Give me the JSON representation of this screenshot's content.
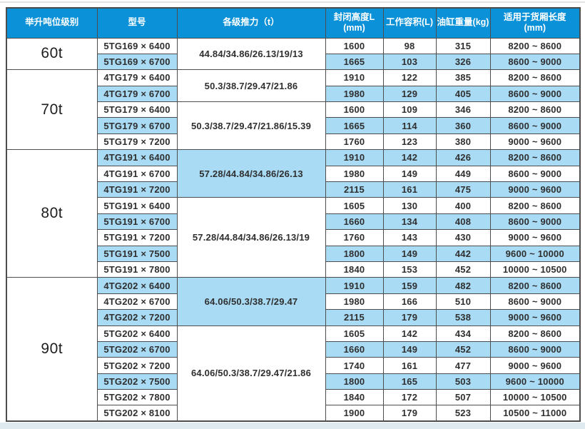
{
  "colors": {
    "header_bg": "#0a91d7",
    "header_text": "#ffffff",
    "shaded_row_bg": "#a9dbf5",
    "border": "#4d4d4d",
    "cell_text": "#2f2f2f",
    "bottom_strip": "#dfe9f0"
  },
  "table": {
    "headers": [
      {
        "label": "举升吨位级别",
        "sub": ""
      },
      {
        "label": "型号",
        "sub": ""
      },
      {
        "label": "各级推力（t）",
        "sub": ""
      },
      {
        "label": "封闭高度L",
        "sub": "(mm)"
      },
      {
        "label": "工作容积(L)",
        "sub": ""
      },
      {
        "label": "油缸重量(kg)",
        "sub": ""
      },
      {
        "label": "适用于货厢长度",
        "sub": "(mm)"
      }
    ],
    "sections": [
      {
        "tonnage": "60t",
        "groups": [
          {
            "thrust": "44.84/34.86/26.13/19/13",
            "thrust_shaded": false,
            "rows": [
              {
                "model": "5TG169 × 6400",
                "closed_height": "1600",
                "working_volume": "98",
                "cylinder_weight": "315",
                "box_length": "8200 ~ 8600",
                "shaded": false
              },
              {
                "model": "5TG169 × 6700",
                "closed_height": "1665",
                "working_volume": "103",
                "cylinder_weight": "326",
                "box_length": "8600 ~ 9000",
                "shaded": true
              }
            ]
          }
        ]
      },
      {
        "tonnage": "70t",
        "groups": [
          {
            "thrust": "50.3/38.7/29.47/21.86",
            "thrust_shaded": false,
            "rows": [
              {
                "model": "4TG179 × 6400",
                "closed_height": "1910",
                "working_volume": "122",
                "cylinder_weight": "385",
                "box_length": "8200 ~ 8600",
                "shaded": false
              },
              {
                "model": "4TG179 × 6700",
                "closed_height": "1980",
                "working_volume": "129",
                "cylinder_weight": "405",
                "box_length": "8600 ~ 9000",
                "shaded": true
              }
            ]
          },
          {
            "thrust": "50.3/38.7/29.47/21.86/15.39",
            "thrust_shaded": false,
            "rows": [
              {
                "model": "5TG179 × 6400",
                "closed_height": "1600",
                "working_volume": "109",
                "cylinder_weight": "346",
                "box_length": "8200 ~ 8600",
                "shaded": false
              },
              {
                "model": "5TG179 × 6700",
                "closed_height": "1665",
                "working_volume": "114",
                "cylinder_weight": "360",
                "box_length": "8600 ~ 9000",
                "shaded": true
              },
              {
                "model": "5TG179 × 7200",
                "closed_height": "1760",
                "working_volume": "123",
                "cylinder_weight": "380",
                "box_length": "9000 ~ 9600",
                "shaded": false
              }
            ]
          }
        ]
      },
      {
        "tonnage": "80t",
        "groups": [
          {
            "thrust": "57.28/44.84/34.86/26.13",
            "thrust_shaded": true,
            "rows": [
              {
                "model": "4TG191 × 6400",
                "closed_height": "1910",
                "working_volume": "142",
                "cylinder_weight": "426",
                "box_length": "8200 ~ 8600",
                "shaded": true
              },
              {
                "model": "4TG191 × 6700",
                "closed_height": "1980",
                "working_volume": "149",
                "cylinder_weight": "449",
                "box_length": "8600 ~ 9000",
                "shaded": false
              },
              {
                "model": "4TG191 × 7200",
                "closed_height": "2115",
                "working_volume": "161",
                "cylinder_weight": "475",
                "box_length": "9000 ~ 9600",
                "shaded": true
              }
            ]
          },
          {
            "thrust": "57.28/44.84/34.86/26.13/19",
            "thrust_shaded": false,
            "rows": [
              {
                "model": "5TG191 × 6400",
                "closed_height": "1605",
                "working_volume": "130",
                "cylinder_weight": "400",
                "box_length": "8200 ~ 8600",
                "shaded": false
              },
              {
                "model": "5TG191 × 6700",
                "closed_height": "1660",
                "working_volume": "134",
                "cylinder_weight": "408",
                "box_length": "8600 ~ 9000",
                "shaded": true
              },
              {
                "model": "5TG191 × 7200",
                "closed_height": "1760",
                "working_volume": "143",
                "cylinder_weight": "430",
                "box_length": "9000 ~ 9600",
                "shaded": false
              },
              {
                "model": "5TG191 × 7500",
                "closed_height": "1800",
                "working_volume": "149",
                "cylinder_weight": "442",
                "box_length": "9600 ~ 10000",
                "shaded": true
              },
              {
                "model": "5TG191 × 7800",
                "closed_height": "1840",
                "working_volume": "153",
                "cylinder_weight": "452",
                "box_length": "10000 ~ 10500",
                "shaded": false
              }
            ]
          }
        ]
      },
      {
        "tonnage": "90t",
        "groups": [
          {
            "thrust": "64.06/50.3/38.7/29.47",
            "thrust_shaded": true,
            "rows": [
              {
                "model": "4TG202 × 6400",
                "closed_height": "1910",
                "working_volume": "159",
                "cylinder_weight": "482",
                "box_length": "8200 ~ 8600",
                "shaded": true
              },
              {
                "model": "4TG202 × 6700",
                "closed_height": "1980",
                "working_volume": "166",
                "cylinder_weight": "510",
                "box_length": "8600 ~ 9000",
                "shaded": false
              },
              {
                "model": "4TG202 × 7200",
                "closed_height": "2115",
                "working_volume": "179",
                "cylinder_weight": "538",
                "box_length": "9000 ~ 9600",
                "shaded": true
              }
            ]
          },
          {
            "thrust": "64.06/50.3/38.7/29.47/21.86",
            "thrust_shaded": false,
            "rows": [
              {
                "model": "5TG202 × 6400",
                "closed_height": "1605",
                "working_volume": "142",
                "cylinder_weight": "434",
                "box_length": "8200 ~ 8600",
                "shaded": false
              },
              {
                "model": "5TG202 × 6700",
                "closed_height": "1660",
                "working_volume": "149",
                "cylinder_weight": "452",
                "box_length": "8600 ~ 9000",
                "shaded": true
              },
              {
                "model": "5TG202 × 7200",
                "closed_height": "1740",
                "working_volume": "161",
                "cylinder_weight": "477",
                "box_length": "9000 ~ 9600",
                "shaded": false
              },
              {
                "model": "5TG202 × 7500",
                "closed_height": "1800",
                "working_volume": "165",
                "cylinder_weight": "503",
                "box_length": "9600 ~ 10000",
                "shaded": true
              },
              {
                "model": "5TG202 × 7800",
                "closed_height": "1840",
                "working_volume": "172",
                "cylinder_weight": "507",
                "box_length": "10000 ~ 10500",
                "shaded": false
              },
              {
                "model": "5TG202 × 8100",
                "closed_height": "1900",
                "working_volume": "179",
                "cylinder_weight": "523",
                "box_length": "10500 ~ 11000",
                "shaded": false
              }
            ]
          }
        ]
      }
    ]
  }
}
